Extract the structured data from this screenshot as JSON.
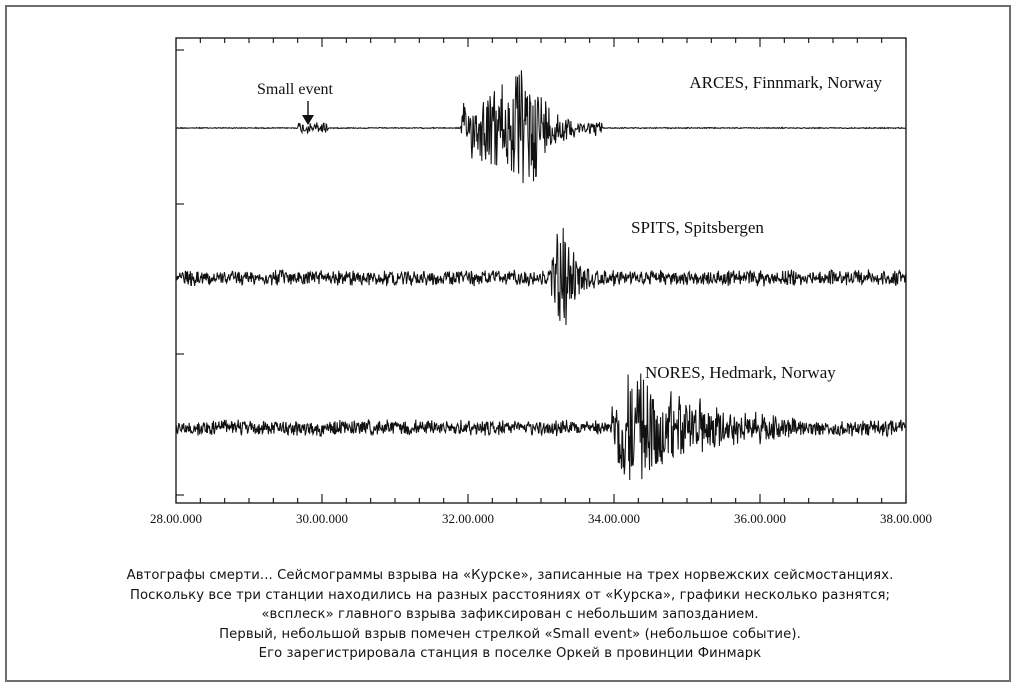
{
  "chart_data": {
    "type": "line",
    "title": "",
    "xlabel": "",
    "ylabel": "",
    "x_range": [
      "28.00.000",
      "38.00.000"
    ],
    "x_ticks": [
      "28.00.000",
      "30.00.000",
      "32.00.000",
      "34.00.000",
      "36.00.000",
      "38.00.000"
    ],
    "grid": false,
    "series": [
      {
        "name": "ARCES, Finnmark, Norway",
        "color": "#111111",
        "background_noise": "near-flat",
        "events": [
          {
            "label": "Small event",
            "start": "29.40.000",
            "end": "30.05.000",
            "relative_amplitude": 0.1
          },
          {
            "start": "31.54.000",
            "peak": "32.52.000",
            "end": "33.50.000",
            "relative_amplitude": 1.0
          }
        ]
      },
      {
        "name": "SPITS, Spitsbergen",
        "color": "#111111",
        "background_noise": "moderate",
        "events": [
          {
            "start": "33.08.000",
            "peak": "33.18.000",
            "end": "34.00.000",
            "relative_amplitude": 1.0
          }
        ]
      },
      {
        "name": "NORES, Hedmark, Norway",
        "color": "#111111",
        "background_noise": "moderate",
        "events": [
          {
            "start": "33.58.000",
            "peak": "34.08.000",
            "end": "38.00.000",
            "relative_amplitude": 1.0
          }
        ]
      }
    ],
    "annotations": [
      {
        "text": "Small event",
        "series": "ARCES, Finnmark, Norway",
        "at": "29.50.000",
        "marker": "arrow-down"
      }
    ]
  },
  "caption": {
    "lines": [
      "Автографы смерти... Сейсмограммы взрыва на «Курске», записанные на трех норвежских сейсмостанциях.",
      "Поскольку все три станции находились на разных расстояниях от «Курска», графики несколько разнятся;",
      "«всплеск» главного взрыва зафиксирован с небольшим запозданием.",
      "Первый, небольшой взрыв помечен стрелкой «Small event» (небольшое событие).",
      "Его зарегистрировала станция в поселке Оркей в провинции Финмарк"
    ]
  }
}
